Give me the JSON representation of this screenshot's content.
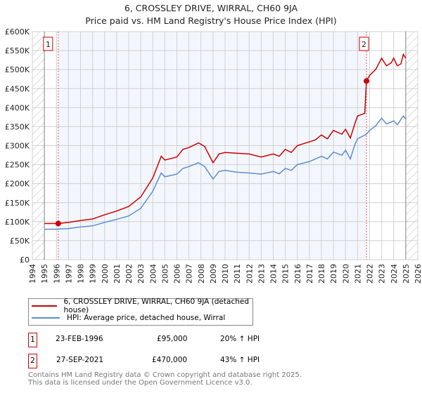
{
  "title": "6, CROSSLEY DRIVE, WIRRAL, CH60 9JA",
  "subtitle": "Price paid vs. HM Land Registry's House Price Index (HPI)",
  "chart_data": {
    "type": "line",
    "xlim": [
      1994,
      2026
    ],
    "ylim": [
      0,
      600000
    ],
    "x_ticks": [
      "1994",
      "1995",
      "1996",
      "1997",
      "1998",
      "1999",
      "2000",
      "2001",
      "2002",
      "2003",
      "2004",
      "2005",
      "2006",
      "2007",
      "2008",
      "2009",
      "2010",
      "2011",
      "2012",
      "2013",
      "2014",
      "2015",
      "2016",
      "2017",
      "2018",
      "2019",
      "2020",
      "2021",
      "2022",
      "2023",
      "2024",
      "2025",
      "2026"
    ],
    "y_ticks": [
      "£0",
      "£50K",
      "£100K",
      "£150K",
      "£200K",
      "£250K",
      "£300K",
      "£350K",
      "£400K",
      "£450K",
      "£500K",
      "£550K",
      "£600K"
    ],
    "grid": true,
    "series": [
      {
        "name": "6, CROSSLEY DRIVE, WIRRAL, CH60 9JA (detached house)",
        "color": "#cc0000",
        "x": [
          1995,
          1996.15,
          1997,
          1998,
          1999,
          2000,
          2001,
          2002,
          2003,
          2004,
          2004.7,
          2005,
          2006,
          2006.5,
          2007,
          2007.8,
          2008.3,
          2009,
          2009.5,
          2010,
          2011,
          2012,
          2013,
          2014,
          2014.5,
          2015,
          2015.5,
          2016,
          2017,
          2017.5,
          2018,
          2018.5,
          2019,
          2019.7,
          2020,
          2020.4,
          2020.8,
          2021,
          2021.6,
          2021.74,
          2022,
          2022.5,
          2023,
          2023.4,
          2023.8,
          2024,
          2024.3,
          2024.6,
          2024.8,
          2025
        ],
        "y": [
          95000,
          95000,
          98000,
          103000,
          107000,
          118000,
          128000,
          140000,
          165000,
          215000,
          272000,
          262000,
          270000,
          290000,
          295000,
          307000,
          298000,
          255000,
          278000,
          282000,
          280000,
          278000,
          270000,
          278000,
          272000,
          290000,
          282000,
          300000,
          310000,
          315000,
          328000,
          318000,
          340000,
          330000,
          343000,
          320000,
          360000,
          378000,
          385000,
          470000,
          485000,
          500000,
          530000,
          510000,
          518000,
          530000,
          510000,
          515000,
          540000,
          530000
        ]
      },
      {
        "name": "HPI: Average price, detached house, Wirral",
        "color": "#5b8dd0",
        "x": [
          1995,
          1996,
          1997,
          1998,
          1999,
          2000,
          2001,
          2002,
          2003,
          2004,
          2004.7,
          2005,
          2006,
          2006.5,
          2007,
          2007.8,
          2008.3,
          2009,
          2009.5,
          2010,
          2011,
          2012,
          2013,
          2014,
          2014.5,
          2015,
          2015.5,
          2016,
          2017,
          2018,
          2018.5,
          2019,
          2019.7,
          2020,
          2020.4,
          2020.8,
          2021,
          2021.74,
          2022,
          2022.5,
          2023,
          2023.4,
          2024,
          2024.3,
          2024.8,
          2025
        ],
        "y": [
          80000,
          80000,
          82000,
          86000,
          89000,
          98000,
          106000,
          115000,
          135000,
          180000,
          228000,
          218000,
          225000,
          240000,
          245000,
          255000,
          245000,
          212000,
          232000,
          235000,
          230000,
          228000,
          225000,
          232000,
          226000,
          240000,
          235000,
          250000,
          258000,
          272000,
          265000,
          283000,
          275000,
          288000,
          265000,
          305000,
          318000,
          330000,
          340000,
          352000,
          372000,
          357000,
          365000,
          355000,
          378000,
          370000
        ]
      }
    ],
    "annotations": [
      {
        "label": "1",
        "x": 1996.15,
        "y": 95000
      },
      {
        "label": "2",
        "x": 2021.74,
        "y": 470000
      }
    ],
    "legend": "bottom"
  },
  "sales": [
    {
      "num": "1",
      "date": "23-FEB-1996",
      "price": "£95,000",
      "hpi": "20% ↑ HPI"
    },
    {
      "num": "2",
      "date": "27-SEP-2021",
      "price": "£470,000",
      "hpi": "43% ↑ HPI"
    }
  ],
  "footer": [
    "Contains HM Land Registry data © Crown copyright and database right 2025.",
    "This data is licensed under the Open Government Licence v3.0."
  ]
}
